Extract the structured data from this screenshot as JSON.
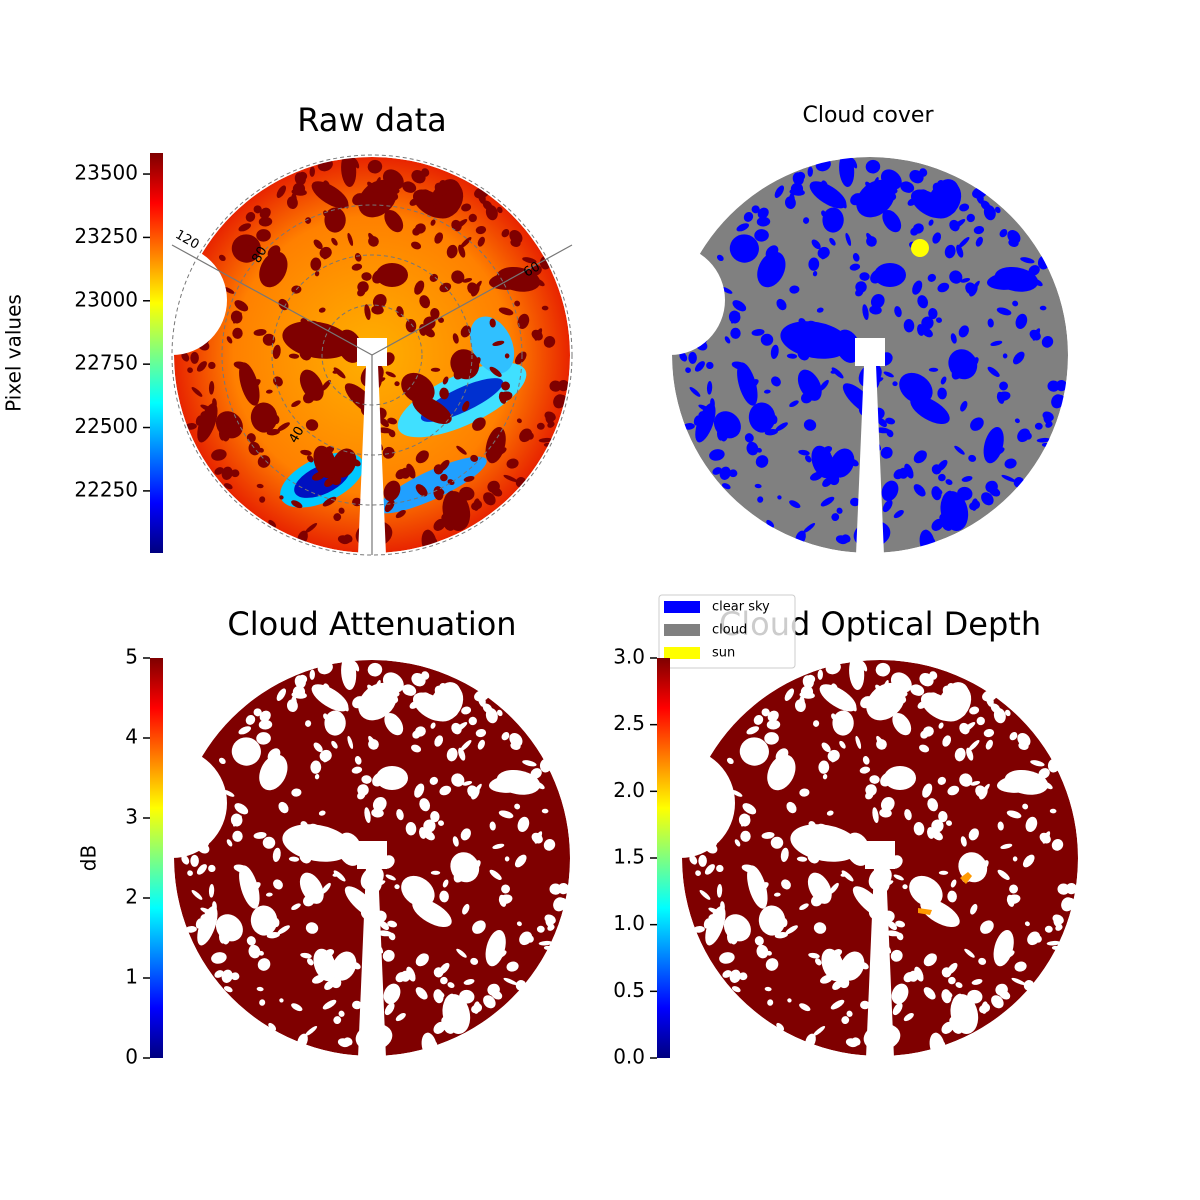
{
  "chart_data": [
    {
      "type": "image",
      "title": "Raw data",
      "colorbar_label": "Pixel values",
      "clim": [
        22005,
        23583
      ],
      "cticks": [
        22250,
        22500,
        22750,
        23000,
        23250,
        23500
      ],
      "polar_labels": [
        "120",
        "60",
        "80",
        "40"
      ]
    },
    {
      "type": "classes",
      "title": "Cloud cover",
      "legend": [
        {
          "name": "clear sky",
          "color": "#0000ff"
        },
        {
          "name": "cloud",
          "color": "#808080"
        },
        {
          "name": "sun",
          "color": "#ffff00"
        }
      ]
    },
    {
      "type": "image",
      "title": "Cloud Attenuation",
      "colorbar_label": "dB",
      "clim": [
        0,
        5
      ],
      "cticks": [
        0,
        1,
        2,
        3,
        4,
        5
      ]
    },
    {
      "type": "image",
      "title": "Cloud Optical Depth",
      "clim": [
        0,
        3
      ],
      "cticks": [
        {
          "value": 0,
          "label": "0.0"
        },
        0.5,
        {
          "value": 1,
          "label": "1.0"
        },
        1.5,
        {
          "value": 2,
          "label": "2.0"
        },
        2.5,
        {
          "value": 3,
          "label": "3.0"
        }
      ]
    }
  ]
}
